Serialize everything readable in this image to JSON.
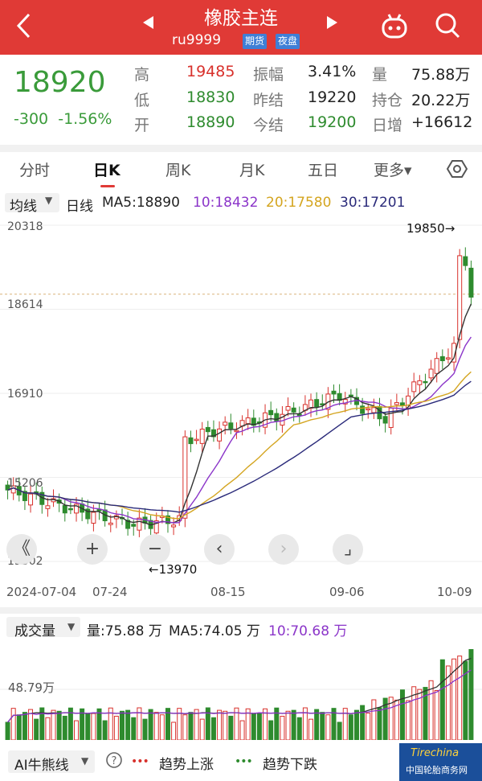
{
  "header": {
    "back_icon": "chevron-left",
    "title": "橡胶主连",
    "code": "ru9999",
    "tag_futures": "期货",
    "tag_night": "夜盘",
    "prev_icon": "triangle-left",
    "next_icon": "triangle-right",
    "robot_icon": "robot-icon",
    "search_icon": "search-icon",
    "bg_color": "#e03a36"
  },
  "quote": {
    "price": "18920",
    "change": "-300",
    "change_pct": "-1.56%",
    "high_label": "高",
    "high": "19485",
    "low_label": "低",
    "low": "18830",
    "open_label": "开",
    "open": "18890",
    "amp_label": "振幅",
    "amp": "3.41%",
    "preclose_label": "昨结",
    "preclose": "19220",
    "settle_label": "今结",
    "settle": "19200",
    "vol_label": "量",
    "vol": "75.88万",
    "oi_label": "持仓",
    "oi": "20.22万",
    "inc_label": "日增",
    "inc": "+16612"
  },
  "tabs": [
    "分时",
    "日K",
    "周K",
    "月K",
    "五日",
    "更多▾"
  ],
  "active_tab": "日K",
  "ma_bar": {
    "mode": "均线",
    "period": "日线",
    "ma5": "MA5:18890",
    "ma10": "10:18432",
    "ma20": "20:17580",
    "ma30": "30:17201"
  },
  "chart_data": {
    "type": "candlestick",
    "y_ticks": [
      "20318",
      "18614",
      "16910",
      "15206",
      "13502"
    ],
    "y_values": [
      20318,
      18614,
      16910,
      15206,
      13502
    ],
    "x_ticks": [
      "2024-07-04",
      "07-24",
      "08-15",
      "09-06",
      "10-09"
    ],
    "annotation_high": "19850→",
    "annotation_low": "←13970",
    "current_price_line": 18920,
    "high_value": 19850,
    "low_value": 13970
  },
  "controls": {
    "zoom_out_fast": "《",
    "zoom_in": "+",
    "zoom_out": "−",
    "prev": "‹",
    "next": "›",
    "fullscreen": "⌟"
  },
  "volume": {
    "mode": "成交量",
    "vol": "量:75.88 万",
    "ma5": "MA5:74.05 万",
    "ma10": "10:70.68 万",
    "y_tick": "48.79万"
  },
  "footer": {
    "mode": "AI牛熊线",
    "help_icon": "help-icon",
    "up_label": "趋势上涨",
    "down_label": "趋势下跌"
  },
  "watermark": {
    "text_top": "Tirechina",
    "text_bottom": "中国轮胎商务网"
  }
}
